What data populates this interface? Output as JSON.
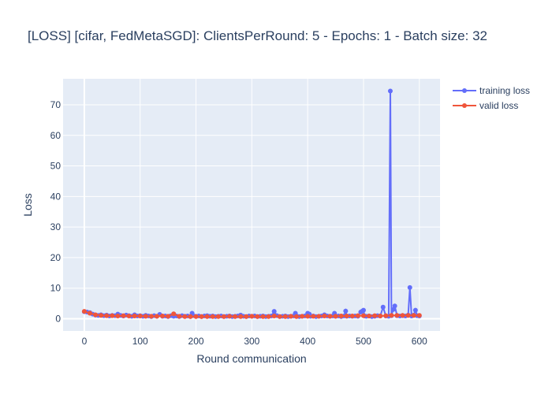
{
  "colors": {
    "plot_bg": "#E5ECF6",
    "grid": "#ffffff",
    "text": "#2a3f5f",
    "training": "#636EFA",
    "valid": "#EF553B"
  },
  "chart_data": {
    "type": "line",
    "title": "[LOSS] [cifar, FedMetaSGD]: ClientsPerRound: 5 - Epochs: 1 - Batch size: 32",
    "xlabel": "Round communication",
    "ylabel": "Loss",
    "xlim": [
      -38,
      637
    ],
    "ylim": [
      -4,
      78.5
    ],
    "xticks": [
      0,
      100,
      200,
      300,
      400,
      500,
      600
    ],
    "yticks": [
      0,
      10,
      20,
      30,
      40,
      50,
      60,
      70
    ],
    "grid": true,
    "legend_position": "top-right outside",
    "series": [
      {
        "name": "training loss",
        "color": "#636EFA",
        "points": [
          [
            0,
            2.3
          ],
          [
            5,
            2.2
          ],
          [
            10,
            2.0
          ],
          [
            15,
            1.5
          ],
          [
            20,
            1.2
          ],
          [
            25,
            1.1
          ],
          [
            30,
            1.3
          ],
          [
            35,
            1.0
          ],
          [
            40,
            1.2
          ],
          [
            45,
            0.9
          ],
          [
            50,
            1.1
          ],
          [
            55,
            1.0
          ],
          [
            60,
            1.5
          ],
          [
            65,
            1.1
          ],
          [
            70,
            0.9
          ],
          [
            75,
            1.2
          ],
          [
            80,
            1.0
          ],
          [
            85,
            0.8
          ],
          [
            90,
            1.3
          ],
          [
            95,
            0.9
          ],
          [
            100,
            1.0
          ],
          [
            105,
            0.8
          ],
          [
            110,
            1.1
          ],
          [
            115,
            0.9
          ],
          [
            120,
            0.7
          ],
          [
            125,
            1.0
          ],
          [
            130,
            0.8
          ],
          [
            135,
            1.4
          ],
          [
            140,
            0.8
          ],
          [
            145,
            0.9
          ],
          [
            150,
            0.7
          ],
          [
            155,
            1.0
          ],
          [
            160,
            0.8
          ],
          [
            165,
            0.9
          ],
          [
            170,
            0.7
          ],
          [
            175,
            1.0
          ],
          [
            180,
            0.8
          ],
          [
            185,
            0.9
          ],
          [
            190,
            0.7
          ],
          [
            193,
            1.8
          ],
          [
            195,
            1.0
          ],
          [
            200,
            0.8
          ],
          [
            205,
            0.9
          ],
          [
            210,
            0.7
          ],
          [
            215,
            0.9
          ],
          [
            220,
            1.0
          ],
          [
            225,
            0.8
          ],
          [
            230,
            0.9
          ],
          [
            235,
            0.7
          ],
          [
            240,
            0.8
          ],
          [
            245,
            0.9
          ],
          [
            250,
            0.7
          ],
          [
            255,
            0.8
          ],
          [
            260,
            0.9
          ],
          [
            265,
            0.7
          ],
          [
            270,
            0.8
          ],
          [
            275,
            0.9
          ],
          [
            280,
            1.2
          ],
          [
            285,
            0.8
          ],
          [
            290,
            0.7
          ],
          [
            295,
            0.9
          ],
          [
            300,
            0.8
          ],
          [
            305,
            0.9
          ],
          [
            310,
            0.7
          ],
          [
            315,
            0.8
          ],
          [
            320,
            0.9
          ],
          [
            325,
            0.7
          ],
          [
            330,
            0.8
          ],
          [
            335,
            0.9
          ],
          [
            340,
            2.4
          ],
          [
            345,
            1.0
          ],
          [
            350,
            0.7
          ],
          [
            355,
            0.8
          ],
          [
            360,
            0.9
          ],
          [
            365,
            0.7
          ],
          [
            370,
            0.8
          ],
          [
            375,
            0.9
          ],
          [
            378,
            1.8
          ],
          [
            380,
            0.9
          ],
          [
            385,
            0.7
          ],
          [
            390,
            0.8
          ],
          [
            395,
            0.9
          ],
          [
            400,
            1.8
          ],
          [
            403,
            1.5
          ],
          [
            405,
            0.8
          ],
          [
            410,
            0.9
          ],
          [
            415,
            0.7
          ],
          [
            420,
            0.8
          ],
          [
            425,
            0.9
          ],
          [
            430,
            1.3
          ],
          [
            435,
            0.9
          ],
          [
            440,
            0.8
          ],
          [
            445,
            0.9
          ],
          [
            448,
            1.8
          ],
          [
            450,
            0.8
          ],
          [
            455,
            0.9
          ],
          [
            460,
            0.7
          ],
          [
            465,
            0.9
          ],
          [
            468,
            2.5
          ],
          [
            470,
            0.8
          ],
          [
            475,
            0.9
          ],
          [
            480,
            0.8
          ],
          [
            485,
            0.9
          ],
          [
            490,
            0.8
          ],
          [
            495,
            2.2
          ],
          [
            498,
            2.5
          ],
          [
            500,
            2.8
          ],
          [
            502,
            0.9
          ],
          [
            505,
            0.8
          ],
          [
            510,
            0.9
          ],
          [
            515,
            0.7
          ],
          [
            520,
            0.8
          ],
          [
            525,
            1.0
          ],
          [
            530,
            0.9
          ],
          [
            535,
            3.8
          ],
          [
            540,
            0.9
          ],
          [
            545,
            0.8
          ],
          [
            548,
            74.5
          ],
          [
            550,
            1.0
          ],
          [
            553,
            3.0
          ],
          [
            556,
            4.2
          ],
          [
            560,
            1.0
          ],
          [
            565,
            0.9
          ],
          [
            570,
            1.0
          ],
          [
            575,
            0.9
          ],
          [
            580,
            1.2
          ],
          [
            583,
            10.2
          ],
          [
            586,
            0.9
          ],
          [
            590,
            1.2
          ],
          [
            593,
            2.8
          ],
          [
            596,
            1.0
          ],
          [
            600,
            0.9
          ]
        ]
      },
      {
        "name": "valid loss",
        "color": "#EF553B",
        "points": [
          [
            0,
            2.4
          ],
          [
            10,
            1.8
          ],
          [
            20,
            1.3
          ],
          [
            30,
            1.1
          ],
          [
            40,
            1.0
          ],
          [
            50,
            1.0
          ],
          [
            60,
            0.9
          ],
          [
            70,
            1.0
          ],
          [
            80,
            0.9
          ],
          [
            90,
            0.9
          ],
          [
            100,
            0.9
          ],
          [
            110,
            0.8
          ],
          [
            120,
            0.8
          ],
          [
            130,
            0.8
          ],
          [
            140,
            0.9
          ],
          [
            150,
            0.8
          ],
          [
            160,
            1.6
          ],
          [
            170,
            0.8
          ],
          [
            180,
            0.7
          ],
          [
            190,
            0.7
          ],
          [
            200,
            0.7
          ],
          [
            210,
            0.7
          ],
          [
            220,
            0.7
          ],
          [
            230,
            0.7
          ],
          [
            240,
            0.7
          ],
          [
            250,
            0.7
          ],
          [
            260,
            0.8
          ],
          [
            270,
            0.7
          ],
          [
            280,
            0.7
          ],
          [
            290,
            0.7
          ],
          [
            300,
            0.8
          ],
          [
            310,
            0.7
          ],
          [
            320,
            0.7
          ],
          [
            330,
            0.7
          ],
          [
            340,
            0.9
          ],
          [
            350,
            0.7
          ],
          [
            360,
            0.7
          ],
          [
            370,
            0.8
          ],
          [
            380,
            0.7
          ],
          [
            390,
            0.8
          ],
          [
            400,
            0.8
          ],
          [
            410,
            0.8
          ],
          [
            420,
            0.8
          ],
          [
            430,
            0.9
          ],
          [
            440,
            0.8
          ],
          [
            450,
            0.8
          ],
          [
            460,
            0.9
          ],
          [
            470,
            0.9
          ],
          [
            480,
            0.9
          ],
          [
            490,
            1.0
          ],
          [
            500,
            1.0
          ],
          [
            510,
            0.9
          ],
          [
            520,
            1.0
          ],
          [
            530,
            0.9
          ],
          [
            540,
            1.0
          ],
          [
            550,
            1.1
          ],
          [
            560,
            1.1
          ],
          [
            570,
            1.1
          ],
          [
            580,
            1.1
          ],
          [
            590,
            1.1
          ],
          [
            600,
            1.1
          ]
        ]
      }
    ]
  }
}
